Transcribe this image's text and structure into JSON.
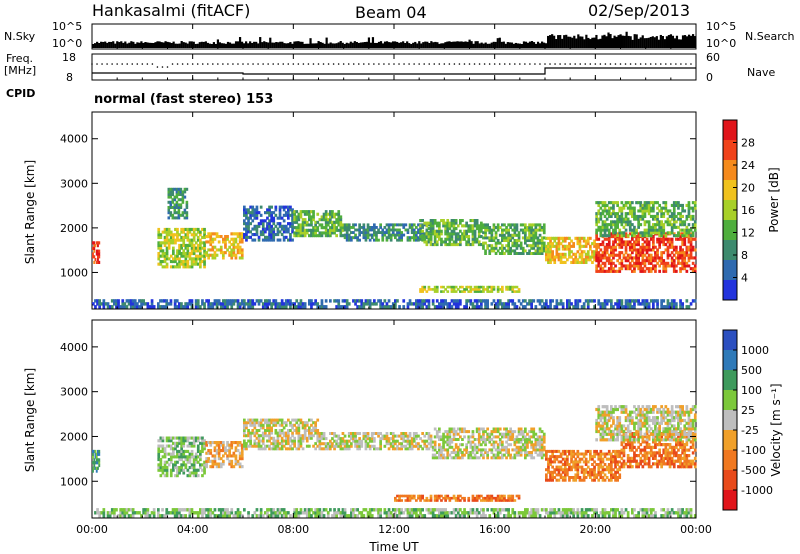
{
  "header": {
    "station": "Hankasalmi (fitACF)",
    "beam": "Beam 04",
    "date": "02/Sep/2013"
  },
  "left_labels": {
    "nsky": "N.Sky",
    "freq": "Freq.",
    "freq_unit": "[MHz]",
    "cpid": "CPID",
    "nsky_top": "10^5",
    "nsky_bot": "10^0",
    "freq_top": "18",
    "freq_bot": "8"
  },
  "right_labels": {
    "nsearch": "N.Search",
    "nave": "Nave",
    "ns_top": "10^5",
    "ns_bot": "10^0",
    "nave_top": "60",
    "nave_bot": "0"
  },
  "mode_text": "normal (fast stereo) 153",
  "colors": {
    "power": [
      "#2233dd",
      "#2f6ab0",
      "#3d8a6e",
      "#4fae3d",
      "#a8d028",
      "#f0c21e",
      "#f58a1c",
      "#f0421a",
      "#e0141a"
    ],
    "velocity": [
      "#2b4fc0",
      "#2f7ab8",
      "#3e9a5c",
      "#7cc83a",
      "#bebebe",
      "#f0a02a",
      "#f07820",
      "#e84a1a",
      "#e0141a"
    ]
  },
  "chart_data": [
    {
      "type": "heatmap",
      "title": "Power",
      "ylabel": "Slant Range [km]",
      "xlabel": "",
      "ylim": [
        180,
        4600
      ],
      "xlim": [
        0,
        24
      ],
      "yticks": [
        "1000",
        "2000",
        "3000",
        "4000"
      ],
      "ytick_values": [
        1000,
        2000,
        3000,
        4000
      ],
      "colorbar": {
        "label": "Power [dB]",
        "ticks": [
          "4",
          "8",
          "12",
          "16",
          "20",
          "24",
          "28"
        ],
        "tick_values": [
          4,
          8,
          12,
          16,
          20,
          24,
          28
        ],
        "range": [
          0,
          32
        ]
      },
      "blobs": [
        {
          "t": [
            0,
            0.3
          ],
          "r": [
            1200,
            1700
          ],
          "level": 7
        },
        {
          "t": [
            2.6,
            4.5
          ],
          "r": [
            1100,
            2000
          ],
          "level": 4
        },
        {
          "t": [
            4.5,
            6.0
          ],
          "r": [
            1300,
            1900
          ],
          "level": 5
        },
        {
          "t": [
            3.0,
            3.8
          ],
          "r": [
            2200,
            2900
          ],
          "level": 2
        },
        {
          "t": [
            6.0,
            8.0
          ],
          "r": [
            1700,
            2500
          ],
          "level": 1
        },
        {
          "t": [
            8.0,
            10.0
          ],
          "r": [
            1800,
            2400
          ],
          "level": 3
        },
        {
          "t": [
            10.0,
            13.5
          ],
          "r": [
            1700,
            2100
          ],
          "level": 2
        },
        {
          "t": [
            13.0,
            15.5
          ],
          "r": [
            1600,
            2200
          ],
          "level": 3
        },
        {
          "t": [
            15.5,
            18.0
          ],
          "r": [
            1400,
            2100
          ],
          "level": 3
        },
        {
          "t": [
            18.0,
            20.0
          ],
          "r": [
            1200,
            1800
          ],
          "level": 5
        },
        {
          "t": [
            20.0,
            24.0
          ],
          "r": [
            1000,
            1900
          ],
          "level": 7
        },
        {
          "t": [
            20.0,
            24.0
          ],
          "r": [
            1800,
            2600
          ],
          "level": 3
        },
        {
          "t": [
            13.0,
            17.0
          ],
          "r": [
            550,
            700
          ],
          "level": 4
        },
        {
          "t": [
            0,
            24
          ],
          "r": [
            200,
            400
          ],
          "level": 1
        }
      ]
    },
    {
      "type": "heatmap",
      "title": "Velocity",
      "ylabel": "Slant Range [km]",
      "xlabel": "Time UT",
      "ylim": [
        180,
        4600
      ],
      "xlim": [
        0,
        24
      ],
      "yticks": [
        "1000",
        "2000",
        "3000",
        "4000"
      ],
      "ytick_values": [
        1000,
        2000,
        3000,
        4000
      ],
      "xticks": [
        "00:00",
        "04:00",
        "08:00",
        "12:00",
        "16:00",
        "20:00",
        "00:00"
      ],
      "xtick_values": [
        0,
        4,
        8,
        12,
        16,
        20,
        24
      ],
      "colorbar": {
        "label": "Velocity [m s⁻¹]",
        "ticks": [
          "1000",
          "500",
          "100",
          "25",
          "-25",
          "-100",
          "-500",
          "-1000"
        ],
        "tick_values": [
          8,
          7,
          6,
          5,
          4,
          3,
          2,
          1
        ],
        "range": [
          0,
          9
        ]
      },
      "blobs": [
        {
          "t": [
            0,
            0.3
          ],
          "r": [
            1200,
            1700
          ],
          "level": 2
        },
        {
          "t": [
            2.6,
            4.5
          ],
          "r": [
            1100,
            2000
          ],
          "level": 3
        },
        {
          "t": [
            4.5,
            6.0
          ],
          "r": [
            1300,
            1900
          ],
          "level": 5
        },
        {
          "t": [
            6.0,
            9.0
          ],
          "r": [
            1700,
            2400
          ],
          "level": 4
        },
        {
          "t": [
            9.0,
            13.5
          ],
          "r": [
            1700,
            2100
          ],
          "level": 4
        },
        {
          "t": [
            13.5,
            18.0
          ],
          "r": [
            1500,
            2200
          ],
          "level": 4
        },
        {
          "t": [
            18.0,
            21.0
          ],
          "r": [
            1000,
            1700
          ],
          "level": 6
        },
        {
          "t": [
            21.0,
            24.0
          ],
          "r": [
            1300,
            2100
          ],
          "level": 6
        },
        {
          "t": [
            20.0,
            24.0
          ],
          "r": [
            1900,
            2700
          ],
          "level": 4
        },
        {
          "t": [
            12.0,
            17.0
          ],
          "r": [
            550,
            700
          ],
          "level": 6
        },
        {
          "t": [
            0,
            24
          ],
          "r": [
            200,
            400
          ],
          "level": 3
        }
      ]
    }
  ]
}
